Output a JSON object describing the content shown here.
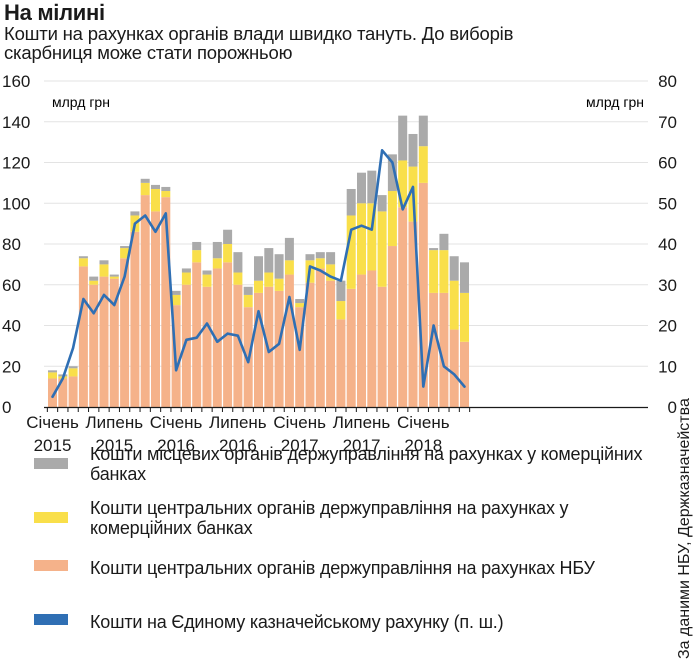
{
  "title": "На мілині",
  "subtitle": "Кошти на рахунках органів влади швидко тануть. До виборів скарбниця може стати порожньою",
  "source": "За даними НБУ, Держказначейства",
  "colors": {
    "local": "#aaaaaa",
    "central_banks": "#f9df4a",
    "central_nbu": "#f5b28a",
    "treasury": "#2f6fb4",
    "axis": "#1a1a1a"
  },
  "chart_data": {
    "type": "bar",
    "stacked": true,
    "left_axis": {
      "unit": "млрд грн",
      "min": 0,
      "max": 160,
      "ticks": [
        "0",
        "20",
        "40",
        "60",
        "80",
        "100",
        "120",
        "140",
        "160"
      ]
    },
    "right_axis": {
      "unit": "млрд грн",
      "min": 0,
      "max": 80,
      "ticks": [
        "0",
        "10",
        "20",
        "30",
        "40",
        "50",
        "60",
        "70",
        "80"
      ]
    },
    "x_labels": [
      {
        "index": 0,
        "line1": "Січень",
        "line2": "2015"
      },
      {
        "index": 6,
        "line1": "Липень",
        "line2": "2015"
      },
      {
        "index": 12,
        "line1": "Січень",
        "line2": "2016"
      },
      {
        "index": 18,
        "line1": "Липень",
        "line2": "2016"
      },
      {
        "index": 24,
        "line1": "Січень",
        "line2": "2017"
      },
      {
        "index": 30,
        "line1": "Липень",
        "line2": "2017"
      },
      {
        "index": 36,
        "line1": "Січень",
        "line2": "2018"
      }
    ],
    "series": [
      {
        "name": "Кошти центральних органів держуправління на рахунках НБУ",
        "axis": "left",
        "values": [
          14,
          14,
          15,
          69,
          60,
          64,
          63,
          73,
          86,
          104,
          96,
          103,
          50,
          60,
          71,
          59,
          68,
          71,
          60,
          49,
          56,
          59,
          57,
          65,
          49,
          61,
          68,
          62,
          43,
          58,
          65,
          67,
          59,
          79,
          98,
          91,
          110,
          56,
          56,
          38,
          32
        ]
      },
      {
        "name": "Кошти центральних органів держуправління на рахунках у комерційних банках",
        "axis": "left",
        "values": [
          3,
          1,
          4,
          4,
          2,
          6,
          1,
          5,
          8,
          6,
          11,
          3,
          5,
          6,
          6,
          6,
          5,
          9,
          6,
          6,
          6,
          7,
          6,
          7,
          2,
          11,
          5,
          8,
          9,
          36,
          35,
          33,
          37,
          27,
          23,
          27,
          18,
          21,
          21,
          24,
          24
        ]
      },
      {
        "name": "Кошти місцевих органів держуправління на рахунках у комерційних банках",
        "axis": "left",
        "values": [
          1,
          1,
          1,
          1,
          2,
          2,
          1,
          1,
          2,
          2,
          2,
          2,
          2,
          2,
          4,
          2,
          8,
          7,
          10,
          4,
          12,
          12,
          12,
          11,
          2,
          3,
          3,
          6,
          10,
          13,
          15,
          16,
          8,
          18,
          22,
          16,
          15,
          1,
          8,
          12,
          15
        ]
      },
      {
        "name": "Кошти на Єдиному казначейському рахунку (п. ш.)",
        "axis": "right",
        "type": "line",
        "values": [
          2.5,
          7,
          14.5,
          26.5,
          23,
          27.5,
          25,
          32,
          45,
          47,
          43,
          47.5,
          9,
          16.5,
          17,
          20.5,
          16,
          18,
          17.5,
          11,
          23.5,
          13.5,
          15.5,
          27,
          14,
          34.5,
          33.5,
          32,
          31,
          43.5,
          44.5,
          43.5,
          63,
          60,
          48.5,
          54,
          5,
          20,
          10,
          8,
          5
        ]
      }
    ]
  },
  "legend": [
    {
      "color": "#aaaaaa",
      "label": "Кошти місцевих органів держуправління на рахунках у комерційних банках"
    },
    {
      "color": "#f9df4a",
      "label": "Кошти центральних органів держуправління на рахунках у комерційних банках"
    },
    {
      "color": "#f5b28a",
      "label": "Кошти центральних органів держуправління на рахунках НБУ"
    },
    {
      "color": "#2f6fb4",
      "label": "Кошти на Єдиному казначейському рахунку (п. ш.)"
    }
  ]
}
